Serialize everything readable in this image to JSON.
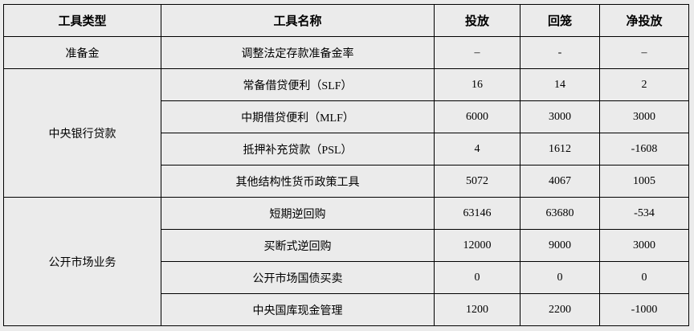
{
  "headers": [
    "工具类型",
    "工具名称",
    "投放",
    "回笼",
    "净投放"
  ],
  "groups": [
    {
      "type": "准备金",
      "rows": [
        {
          "name": "调整法定存款准备金率",
          "put": "–",
          "withdraw": "-",
          "net": "–"
        }
      ]
    },
    {
      "type": "中央银行贷款",
      "rows": [
        {
          "name": "常备借贷便利（SLF）",
          "put": "16",
          "withdraw": "14",
          "net": "2"
        },
        {
          "name": "中期借贷便利（MLF）",
          "put": "6000",
          "withdraw": "3000",
          "net": "3000"
        },
        {
          "name": "抵押补充贷款（PSL）",
          "put": "4",
          "withdraw": "1612",
          "net": "-1608"
        },
        {
          "name": "其他结构性货币政策工具",
          "put": "5072",
          "withdraw": "4067",
          "net": "1005"
        }
      ]
    },
    {
      "type": "公开市场业务",
      "rows": [
        {
          "name": "短期逆回购",
          "put": "63146",
          "withdraw": "63680",
          "net": "-534"
        },
        {
          "name": "买断式逆回购",
          "put": "12000",
          "withdraw": "9000",
          "net": "3000"
        },
        {
          "name": "公开市场国债买卖",
          "put": "0",
          "withdraw": "0",
          "net": "0"
        },
        {
          "name": "中央国库现金管理",
          "put": "1200",
          "withdraw": "2200",
          "net": "-1000"
        }
      ]
    }
  ]
}
